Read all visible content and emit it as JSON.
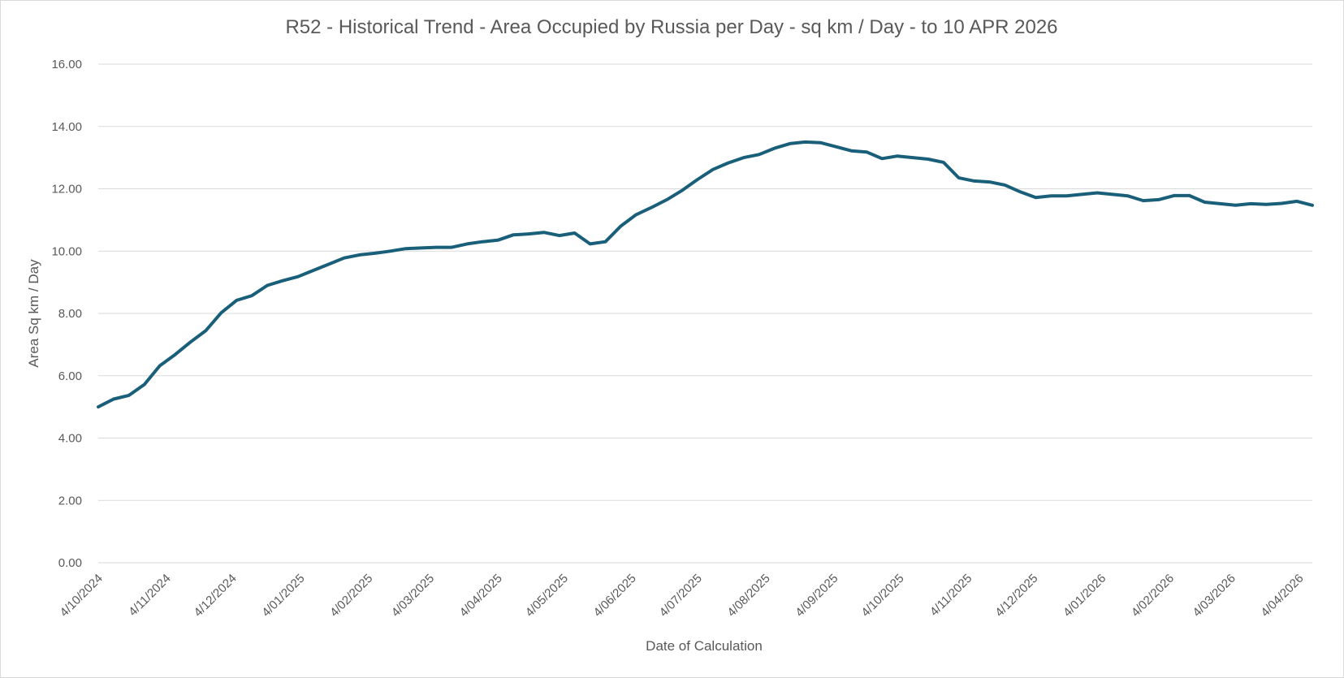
{
  "chart_data": {
    "type": "line",
    "title": "R52 - Historical Trend - Area Occupied by Russia per Day - sq km / Day - to 10 APR 2026",
    "xlabel": "Date of Calculation",
    "ylabel": "Area Sq km / Day",
    "ylim": [
      0,
      16
    ],
    "yticks": [
      "0.00",
      "2.00",
      "4.00",
      "6.00",
      "8.00",
      "10.00",
      "12.00",
      "14.00",
      "16.00"
    ],
    "xlim": [
      "2024-10-04",
      "2026-04-10"
    ],
    "xticks": [
      {
        "date": "2024-10-04",
        "label": "4/10/2024"
      },
      {
        "date": "2024-11-04",
        "label": "4/11/2024"
      },
      {
        "date": "2024-12-04",
        "label": "4/12/2024"
      },
      {
        "date": "2025-01-04",
        "label": "4/01/2025"
      },
      {
        "date": "2025-02-04",
        "label": "4/02/2025"
      },
      {
        "date": "2025-03-04",
        "label": "4/03/2025"
      },
      {
        "date": "2025-04-04",
        "label": "4/04/2025"
      },
      {
        "date": "2025-05-04",
        "label": "4/05/2025"
      },
      {
        "date": "2025-06-04",
        "label": "4/06/2025"
      },
      {
        "date": "2025-07-04",
        "label": "4/07/2025"
      },
      {
        "date": "2025-08-04",
        "label": "4/08/2025"
      },
      {
        "date": "2025-09-04",
        "label": "4/09/2025"
      },
      {
        "date": "2025-10-04",
        "label": "4/10/2025"
      },
      {
        "date": "2025-11-04",
        "label": "4/11/2025"
      },
      {
        "date": "2025-12-04",
        "label": "4/12/2025"
      },
      {
        "date": "2026-01-04",
        "label": "4/01/2026"
      },
      {
        "date": "2026-02-04",
        "label": "4/02/2026"
      },
      {
        "date": "2026-03-04",
        "label": "4/03/2026"
      },
      {
        "date": "2026-04-04",
        "label": "4/04/2026"
      }
    ],
    "grid": true,
    "legend": "none",
    "color": "#1a5f7a",
    "series": [
      {
        "x": [
          "2024-10-04",
          "2024-10-11",
          "2024-10-18",
          "2024-10-25",
          "2024-11-01",
          "2024-11-08",
          "2024-11-15",
          "2024-11-22",
          "2024-11-29",
          "2024-12-06",
          "2024-12-13",
          "2024-12-20",
          "2024-12-27",
          "2025-01-03",
          "2025-01-10",
          "2025-01-17",
          "2025-01-24",
          "2025-01-31",
          "2025-02-07",
          "2025-02-14",
          "2025-02-21",
          "2025-02-28",
          "2025-03-07",
          "2025-03-14",
          "2025-03-21",
          "2025-03-28",
          "2025-04-04",
          "2025-04-11",
          "2025-04-18",
          "2025-04-25",
          "2025-05-02",
          "2025-05-09",
          "2025-05-16",
          "2025-05-23",
          "2025-05-30",
          "2025-06-06",
          "2025-06-13",
          "2025-06-20",
          "2025-06-27",
          "2025-07-04",
          "2025-07-11",
          "2025-07-18",
          "2025-07-25",
          "2025-08-01",
          "2025-08-08",
          "2025-08-15",
          "2025-08-22",
          "2025-08-29",
          "2025-09-05",
          "2025-09-12",
          "2025-09-19",
          "2025-09-26",
          "2025-10-03",
          "2025-10-10",
          "2025-10-17",
          "2025-10-24",
          "2025-10-31",
          "2025-11-07",
          "2025-11-14",
          "2025-11-21",
          "2025-11-28",
          "2025-12-05",
          "2025-12-12",
          "2025-12-19",
          "2025-12-26",
          "2026-01-02",
          "2026-01-09",
          "2026-01-16",
          "2026-01-23",
          "2026-01-30",
          "2026-02-06",
          "2026-02-13",
          "2026-02-20",
          "2026-02-27",
          "2026-03-06",
          "2026-03-13",
          "2026-03-20",
          "2026-03-27",
          "2026-04-03",
          "2026-04-10"
        ],
        "y": [
          5.0,
          5.25,
          5.37,
          5.72,
          6.32,
          6.68,
          7.08,
          7.45,
          8.02,
          8.42,
          8.57,
          8.9,
          9.05,
          9.18,
          9.38,
          9.58,
          9.78,
          9.88,
          9.93,
          10.0,
          10.08,
          10.1,
          10.12,
          10.12,
          10.23,
          10.3,
          10.35,
          10.52,
          10.55,
          10.6,
          10.5,
          10.58,
          10.23,
          10.3,
          10.8,
          11.17,
          11.4,
          11.65,
          11.95,
          12.3,
          12.62,
          12.83,
          13.0,
          13.1,
          13.3,
          13.45,
          13.5,
          13.48,
          13.35,
          13.22,
          13.18,
          12.97,
          13.05,
          13.0,
          12.95,
          12.85,
          12.35,
          12.25,
          12.22,
          12.12,
          11.9,
          11.72,
          11.77,
          11.77,
          11.82,
          11.87,
          11.82,
          11.77,
          11.62,
          11.65,
          11.78,
          11.78,
          11.57,
          11.52,
          11.47,
          11.52,
          11.5,
          11.53,
          11.6,
          11.47
        ]
      }
    ]
  }
}
